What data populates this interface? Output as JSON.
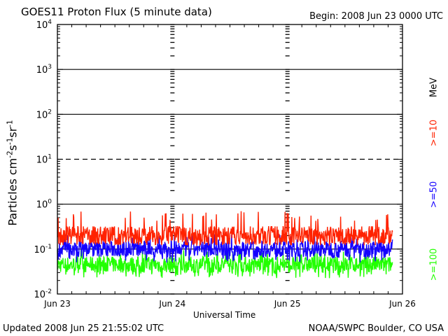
{
  "chart_data": {
    "type": "line",
    "title": "GOES11 Proton Flux (5 minute data)",
    "begin_text": "Begin: 2008 Jun 23 0000 UTC",
    "xlabel": "Universal Time",
    "ylabel": {
      "base": "Particles cm",
      "exp1": "-2",
      "mid1": "s",
      "exp2": "-1",
      "mid2": "sr",
      "exp3": "-1"
    },
    "y_scale": "log",
    "ylim": [
      0.01,
      10000
    ],
    "y_ticks": [
      {
        "value": 0.01,
        "base": "10",
        "exp": "-2"
      },
      {
        "value": 0.1,
        "base": "10",
        "exp": "-1"
      },
      {
        "value": 1,
        "base": "10",
        "exp": "0"
      },
      {
        "value": 10,
        "base": "10",
        "exp": "1"
      },
      {
        "value": 100,
        "base": "10",
        "exp": "2"
      },
      {
        "value": 1000,
        "base": "10",
        "exp": "3"
      },
      {
        "value": 10000,
        "base": "10",
        "exp": "4"
      }
    ],
    "x_unit": "hours since 2008 Jun 23 0000 UTC",
    "xlim": [
      0,
      72
    ],
    "x_ticks": [
      {
        "value": 0,
        "label": "Jun 23"
      },
      {
        "value": 24,
        "label": "Jun 24"
      },
      {
        "value": 48,
        "label": "Jun 25"
      },
      {
        "value": 72,
        "label": "Jun 26"
      }
    ],
    "threshold_lines": [
      {
        "value": 1000,
        "style": "solid"
      },
      {
        "value": 100,
        "style": "solid"
      },
      {
        "value": 10,
        "style": "dashed"
      },
      {
        "value": 1,
        "style": "solid"
      },
      {
        "value": 0.1,
        "style": "solid"
      }
    ],
    "legend_unit": "MeV",
    "legend_position": "right",
    "data_end_hour": 69.9,
    "series": [
      {
        "name": ">=10",
        "color": "#ff2200",
        "typical": 0.2,
        "min": 0.12,
        "max": 0.7
      },
      {
        "name": ">=50",
        "color": "#1400ff",
        "typical": 0.1,
        "min": 0.05,
        "max": 0.22
      },
      {
        "name": ">=100",
        "color": "#22ff00",
        "typical": 0.045,
        "min": 0.022,
        "max": 0.1
      }
    ]
  },
  "footer": {
    "updated": "Updated 2008 Jun 25 21:55:02 UTC",
    "credit": "NOAA/SWPC Boulder, CO USA"
  }
}
